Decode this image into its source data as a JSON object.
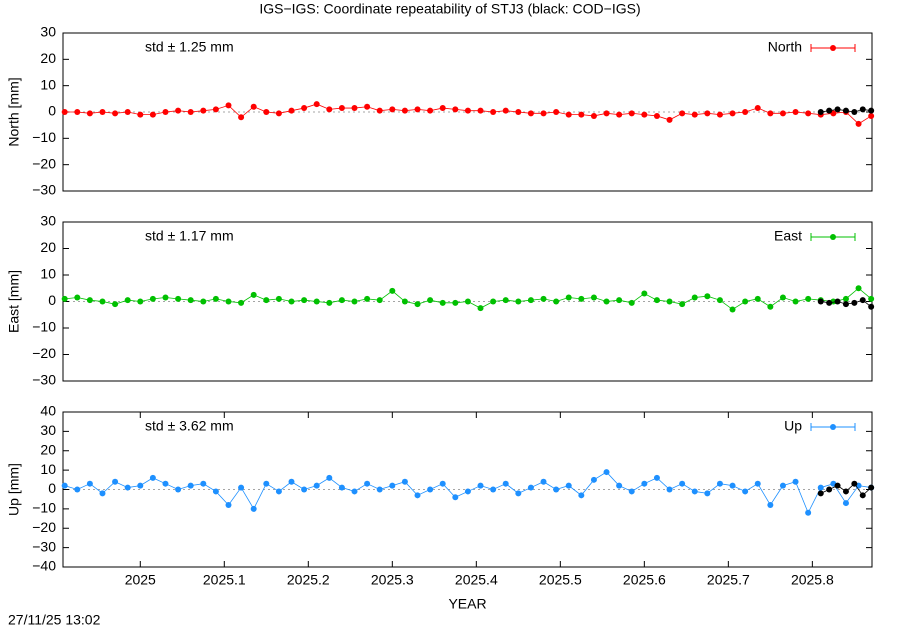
{
  "title": "IGS−IGS: Coordinate repeatability of STJ3 (black: COD−IGS)",
  "timestamp": "27/11/25 13:02",
  "chart_data": [
    {
      "type": "line",
      "ylabel": "North [mm]",
      "annotation": "std ± 1.25 mm",
      "xlim": [
        2024.908,
        2025.871
      ],
      "ylim": [
        -30,
        30
      ],
      "yticks": [
        {
          "value": -30,
          "label": "−30"
        },
        {
          "value": -20,
          "label": "−20"
        },
        {
          "value": -10,
          "label": "−10"
        },
        0,
        10,
        20,
        30
      ],
      "x": [
        2024.91,
        2024.925,
        2024.94,
        2024.955,
        2024.97,
        2024.985,
        2025.0,
        2025.015,
        2025.03,
        2025.045,
        2025.06,
        2025.075,
        2025.09,
        2025.105,
        2025.12,
        2025.135,
        2025.15,
        2025.165,
        2025.18,
        2025.195,
        2025.21,
        2025.225,
        2025.24,
        2025.255,
        2025.27,
        2025.285,
        2025.3,
        2025.315,
        2025.33,
        2025.345,
        2025.36,
        2025.375,
        2025.39,
        2025.405,
        2025.42,
        2025.435,
        2025.45,
        2025.465,
        2025.48,
        2025.495,
        2025.51,
        2025.525,
        2025.54,
        2025.555,
        2025.57,
        2025.585,
        2025.6,
        2025.615,
        2025.63,
        2025.645,
        2025.66,
        2025.675,
        2025.69,
        2025.705,
        2025.72,
        2025.735,
        2025.75,
        2025.765,
        2025.78,
        2025.795,
        2025.81,
        2025.825,
        2025.84,
        2025.855,
        2025.87
      ],
      "series": [
        {
          "name": "North",
          "color": "#ff0000",
          "values": [
            0,
            0,
            -0.5,
            0,
            -0.5,
            0,
            -1,
            -1,
            0,
            0.5,
            0,
            0.5,
            1,
            2.5,
            -2,
            2,
            0,
            -0.5,
            0.5,
            1.5,
            3,
            1,
            1.5,
            1.5,
            2,
            0.5,
            1,
            0.5,
            1,
            0.5,
            1.5,
            1,
            0.5,
            0.5,
            0,
            0.5,
            0,
            -0.5,
            -0.5,
            0,
            -1,
            -1,
            -1.5,
            -0.5,
            -1,
            -0.5,
            -1,
            -1.5,
            -3,
            -0.5,
            -1,
            -0.5,
            -1,
            -0.5,
            0,
            1.5,
            -0.5,
            -0.5,
            0,
            -0.5,
            -1,
            -0.5,
            0,
            -4.5,
            -1.5
          ]
        },
        {
          "color": "#000000",
          "x": [
            2025.81,
            2025.82,
            2025.83,
            2025.84,
            2025.85,
            2025.86,
            2025.87
          ],
          "values": [
            0,
            0.5,
            1,
            0.5,
            0,
            1,
            0.5
          ]
        }
      ]
    },
    {
      "type": "line",
      "ylabel": "East [mm]",
      "annotation": "std ± 1.17 mm",
      "xlim": [
        2024.908,
        2025.871
      ],
      "ylim": [
        -30,
        30
      ],
      "yticks": [
        {
          "value": -30,
          "label": "−30"
        },
        {
          "value": -20,
          "label": "−20"
        },
        {
          "value": -10,
          "label": "−10"
        },
        0,
        10,
        20,
        30
      ],
      "x": [
        2024.91,
        2024.925,
        2024.94,
        2024.955,
        2024.97,
        2024.985,
        2025.0,
        2025.015,
        2025.03,
        2025.045,
        2025.06,
        2025.075,
        2025.09,
        2025.105,
        2025.12,
        2025.135,
        2025.15,
        2025.165,
        2025.18,
        2025.195,
        2025.21,
        2025.225,
        2025.24,
        2025.255,
        2025.27,
        2025.285,
        2025.3,
        2025.315,
        2025.33,
        2025.345,
        2025.36,
        2025.375,
        2025.39,
        2025.405,
        2025.42,
        2025.435,
        2025.45,
        2025.465,
        2025.48,
        2025.495,
        2025.51,
        2025.525,
        2025.54,
        2025.555,
        2025.57,
        2025.585,
        2025.6,
        2025.615,
        2025.63,
        2025.645,
        2025.66,
        2025.675,
        2025.69,
        2025.705,
        2025.72,
        2025.735,
        2025.75,
        2025.765,
        2025.78,
        2025.795,
        2025.81,
        2025.825,
        2025.84,
        2025.855,
        2025.87
      ],
      "series": [
        {
          "name": "East",
          "color": "#00c000",
          "values": [
            1,
            1.5,
            0.5,
            0,
            -1,
            0.5,
            0,
            1,
            1.5,
            1,
            0.5,
            0,
            1,
            0,
            -0.5,
            2.5,
            0.5,
            1,
            0,
            0.5,
            0,
            -0.5,
            0.5,
            0,
            1,
            0.5,
            4,
            0,
            -1,
            0.5,
            -0.5,
            -0.5,
            0,
            -2.5,
            0,
            0.5,
            0,
            0.5,
            1,
            0,
            1.5,
            1,
            1.5,
            0,
            0.5,
            -0.5,
            3,
            0.5,
            0,
            -1,
            1.5,
            2,
            0.5,
            -3,
            0,
            1,
            -2,
            1.5,
            0,
            1,
            0.5,
            0,
            1,
            5,
            1
          ]
        },
        {
          "color": "#000000",
          "x": [
            2025.81,
            2025.82,
            2025.83,
            2025.84,
            2025.85,
            2025.86,
            2025.87
          ],
          "values": [
            0,
            -0.5,
            0,
            -1,
            -0.5,
            0.5,
            -2
          ]
        }
      ]
    },
    {
      "type": "line",
      "ylabel": "Up [mm]",
      "annotation": "std ± 3.62 mm",
      "xlabel": "YEAR",
      "xlim": [
        2024.908,
        2025.871
      ],
      "ylim": [
        -40,
        40
      ],
      "xticks": [
        2025,
        2025.1,
        2025.2,
        2025.3,
        2025.4,
        2025.5,
        2025.6,
        2025.7,
        2025.8
      ],
      "yticks": [
        {
          "value": -40,
          "label": "−40"
        },
        {
          "value": -30,
          "label": "−30"
        },
        {
          "value": -20,
          "label": "−20"
        },
        {
          "value": -10,
          "label": "−10"
        },
        0,
        10,
        20,
        30,
        40
      ],
      "x": [
        2024.91,
        2024.925,
        2024.94,
        2024.955,
        2024.97,
        2024.985,
        2025.0,
        2025.015,
        2025.03,
        2025.045,
        2025.06,
        2025.075,
        2025.09,
        2025.105,
        2025.12,
        2025.135,
        2025.15,
        2025.165,
        2025.18,
        2025.195,
        2025.21,
        2025.225,
        2025.24,
        2025.255,
        2025.27,
        2025.285,
        2025.3,
        2025.315,
        2025.33,
        2025.345,
        2025.36,
        2025.375,
        2025.39,
        2025.405,
        2025.42,
        2025.435,
        2025.45,
        2025.465,
        2025.48,
        2025.495,
        2025.51,
        2025.525,
        2025.54,
        2025.555,
        2025.57,
        2025.585,
        2025.6,
        2025.615,
        2025.63,
        2025.645,
        2025.66,
        2025.675,
        2025.69,
        2025.705,
        2025.72,
        2025.735,
        2025.75,
        2025.765,
        2025.78,
        2025.795,
        2025.81,
        2025.825,
        2025.84,
        2025.855,
        2025.87
      ],
      "series": [
        {
          "name": "Up",
          "color": "#1e90ff",
          "values": [
            2,
            0,
            3,
            -2,
            4,
            1,
            2,
            6,
            3,
            0,
            2,
            3,
            -1,
            -8,
            1,
            -10,
            3,
            -1,
            4,
            0,
            2,
            6,
            1,
            -1,
            3,
            0,
            2,
            4,
            -3,
            0,
            3,
            -4,
            -1,
            2,
            0,
            3,
            -2,
            1,
            4,
            0,
            2,
            -3,
            5,
            9,
            2,
            -1,
            3,
            6,
            0,
            3,
            -1,
            -2,
            3,
            2,
            -1,
            3,
            -8,
            2,
            4,
            -12,
            1,
            3,
            -7,
            2,
            1
          ]
        },
        {
          "color": "#000000",
          "x": [
            2025.81,
            2025.82,
            2025.83,
            2025.84,
            2025.85,
            2025.86,
            2025.87
          ],
          "values": [
            -2,
            0,
            2,
            -1,
            3,
            -3,
            1
          ]
        }
      ]
    }
  ]
}
